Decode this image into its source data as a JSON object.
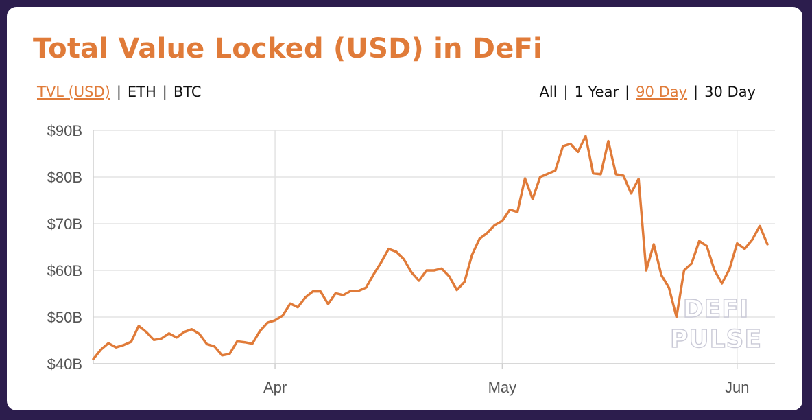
{
  "title": "Total Value Locked (USD) in DeFi",
  "metric_toggle": {
    "options": [
      "TVL (USD)",
      "ETH",
      "BTC"
    ],
    "selected": "TVL (USD)"
  },
  "range_toggle": {
    "options": [
      "All",
      "1 Year",
      "90 Day",
      "30 Day"
    ],
    "selected": "90 Day"
  },
  "watermark": "DEFI PULSE",
  "colors": {
    "accent": "#e07b39",
    "background": "#2c1d4d",
    "card": "#ffffff"
  },
  "chart_data": {
    "type": "line",
    "title": "Total Value Locked (USD) in DeFi",
    "xlabel": "",
    "ylabel": "",
    "ylim": [
      40,
      90
    ],
    "y_unit": "billion USD",
    "yticks": [
      "$40B",
      "$50B",
      "$60B",
      "$70B",
      "$80B",
      "$90B"
    ],
    "xticks": [
      "Apr",
      "May",
      "Jun"
    ],
    "x_range": [
      "2021-03-08",
      "2021-06-06"
    ],
    "grid": true,
    "legend": "none",
    "series": [
      {
        "color": "#e07b39",
        "points": [
          [
            "2021-03-08",
            41.0
          ],
          [
            "2021-03-09",
            43.0
          ],
          [
            "2021-03-10",
            44.4
          ],
          [
            "2021-03-11",
            43.5
          ],
          [
            "2021-03-12",
            44.0
          ],
          [
            "2021-03-13",
            44.7
          ],
          [
            "2021-03-14",
            48.1
          ],
          [
            "2021-03-15",
            46.8
          ],
          [
            "2021-03-16",
            45.1
          ],
          [
            "2021-03-17",
            45.4
          ],
          [
            "2021-03-18",
            46.5
          ],
          [
            "2021-03-19",
            45.6
          ],
          [
            "2021-03-20",
            46.8
          ],
          [
            "2021-03-21",
            47.4
          ],
          [
            "2021-03-22",
            46.4
          ],
          [
            "2021-03-23",
            44.2
          ],
          [
            "2021-03-24",
            43.7
          ],
          [
            "2021-03-25",
            41.8
          ],
          [
            "2021-03-26",
            42.1
          ],
          [
            "2021-03-27",
            44.8
          ],
          [
            "2021-03-28",
            44.6
          ],
          [
            "2021-03-29",
            44.3
          ],
          [
            "2021-03-30",
            47.0
          ],
          [
            "2021-03-31",
            48.8
          ],
          [
            "2021-04-01",
            49.3
          ],
          [
            "2021-04-02",
            50.3
          ],
          [
            "2021-04-03",
            52.9
          ],
          [
            "2021-04-04",
            52.1
          ],
          [
            "2021-04-05",
            54.2
          ],
          [
            "2021-04-06",
            55.5
          ],
          [
            "2021-04-07",
            55.5
          ],
          [
            "2021-04-08",
            52.8
          ],
          [
            "2021-04-09",
            55.1
          ],
          [
            "2021-04-10",
            54.7
          ],
          [
            "2021-04-11",
            55.6
          ],
          [
            "2021-04-12",
            55.6
          ],
          [
            "2021-04-13",
            56.3
          ],
          [
            "2021-04-14",
            59.1
          ],
          [
            "2021-04-15",
            61.7
          ],
          [
            "2021-04-16",
            64.6
          ],
          [
            "2021-04-17",
            64.0
          ],
          [
            "2021-04-18",
            62.4
          ],
          [
            "2021-04-19",
            59.6
          ],
          [
            "2021-04-20",
            57.8
          ],
          [
            "2021-04-21",
            60.0
          ],
          [
            "2021-04-22",
            60.0
          ],
          [
            "2021-04-23",
            60.4
          ],
          [
            "2021-04-24",
            58.7
          ],
          [
            "2021-04-25",
            55.8
          ],
          [
            "2021-04-26",
            57.5
          ],
          [
            "2021-04-27",
            63.3
          ],
          [
            "2021-04-28",
            66.8
          ],
          [
            "2021-04-29",
            68.0
          ],
          [
            "2021-04-30",
            69.7
          ],
          [
            "2021-05-01",
            70.6
          ],
          [
            "2021-05-02",
            73.0
          ],
          [
            "2021-05-03",
            72.5
          ],
          [
            "2021-05-04",
            79.7
          ],
          [
            "2021-05-05",
            75.3
          ],
          [
            "2021-05-06",
            80.0
          ],
          [
            "2021-05-07",
            80.7
          ],
          [
            "2021-05-08",
            81.4
          ],
          [
            "2021-05-09",
            86.6
          ],
          [
            "2021-05-10",
            87.1
          ],
          [
            "2021-05-11",
            85.4
          ],
          [
            "2021-05-12",
            88.8
          ],
          [
            "2021-05-13",
            80.8
          ],
          [
            "2021-05-14",
            80.6
          ],
          [
            "2021-05-15",
            87.7
          ],
          [
            "2021-05-16",
            80.6
          ],
          [
            "2021-05-17",
            80.3
          ],
          [
            "2021-05-18",
            76.5
          ],
          [
            "2021-05-19",
            79.6
          ],
          [
            "2021-05-20",
            60.0
          ],
          [
            "2021-05-21",
            65.6
          ],
          [
            "2021-05-22",
            59.0
          ],
          [
            "2021-05-23",
            56.3
          ],
          [
            "2021-05-24",
            50.0
          ],
          [
            "2021-05-25",
            60.0
          ],
          [
            "2021-05-26",
            61.5
          ],
          [
            "2021-05-27",
            66.3
          ],
          [
            "2021-05-28",
            65.2
          ],
          [
            "2021-05-29",
            60.1
          ],
          [
            "2021-05-30",
            57.2
          ],
          [
            "2021-05-31",
            60.3
          ],
          [
            "2021-06-01",
            65.8
          ],
          [
            "2021-06-02",
            64.6
          ],
          [
            "2021-06-03",
            66.6
          ],
          [
            "2021-06-04",
            69.5
          ],
          [
            "2021-06-05",
            65.6
          ]
        ]
      }
    ]
  }
}
